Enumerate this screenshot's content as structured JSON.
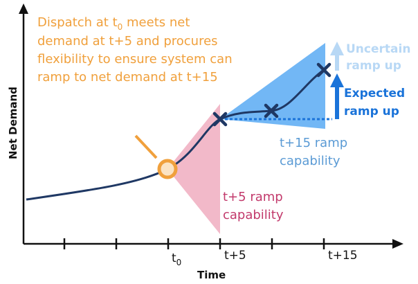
{
  "axes": {
    "ylabel": "Net Demand",
    "xlabel": "Time",
    "ticks": {
      "t0": {
        "base": "t",
        "sub": "0"
      },
      "t5": "t+5",
      "t15": "t+15"
    }
  },
  "annotations": {
    "dispatch": {
      "pre": "Dispatch at t",
      "sub": "0",
      "post": " meets net demand at t+5 and procures flexibility to ensure system can ramp to net demand at t+15"
    },
    "t5_capability": [
      "t+5 ramp",
      "capability"
    ],
    "t15_capability": [
      "t+15 ramp",
      "capability"
    ],
    "uncertain": [
      "Uncertain",
      "ramp up"
    ],
    "expected": [
      "Expected",
      "ramp up"
    ]
  },
  "colors": {
    "curve": "#1f3864",
    "axis": "#111111",
    "orange": "#f0a03c",
    "pink": "#f2b9c9",
    "pink_text": "#c2396b",
    "blue_fill": "#72b7f5",
    "blue_dark": "#1a73d9",
    "blue_light": "#b8d8f5",
    "blue_text_dim": "#5b9bd5"
  }
}
